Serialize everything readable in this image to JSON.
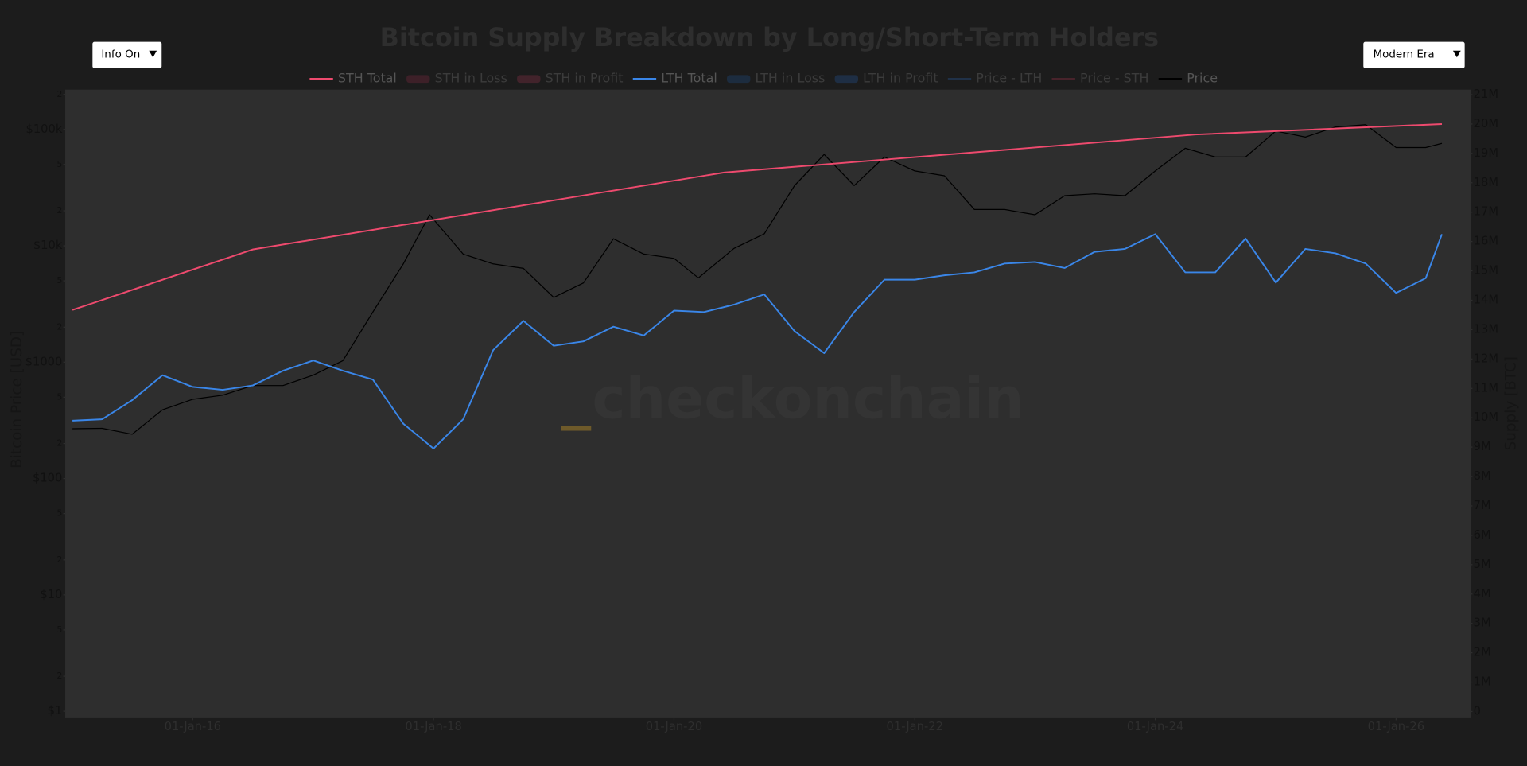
{
  "controls": {
    "info": "Info On",
    "era": "Modern Era"
  },
  "chart_data": {
    "type": "line",
    "title": "Bitcoin Supply Breakdown by Long/Short-Term Holders",
    "watermark": {
      "mark": "_",
      "text": "checkonchain"
    },
    "ylabel": "Bitcoin Price [USD]",
    "y2label": "Supply [BTC]",
    "ylog": true,
    "grid": false,
    "legend": "top",
    "xlim": [
      "2014-12-10",
      "2026-08-15"
    ],
    "xticks": [
      {
        "value": "2016-01-01",
        "label": "01-Jan-16"
      },
      {
        "value": "2018-01-01",
        "label": "01-Jan-18"
      },
      {
        "value": "2020-01-01",
        "label": "01-Jan-20"
      },
      {
        "value": "2022-01-01",
        "label": "01-Jan-22"
      },
      {
        "value": "2024-01-01",
        "label": "01-Jan-24"
      },
      {
        "value": "2026-01-01",
        "label": "01-Jan-26"
      }
    ],
    "ylim": [
      0.87,
      220000
    ],
    "yticks": [
      {
        "value": 1,
        "label": "$1"
      },
      {
        "value": 2,
        "label": "2"
      },
      5,
      {
        "value": 10,
        "label": "$10"
      },
      {
        "value": 20,
        "label": "2"
      },
      {
        "value": 50,
        "label": "5"
      },
      {
        "value": 100,
        "label": "$100"
      },
      {
        "value": 200,
        "label": "2"
      },
      {
        "value": 500,
        "label": "5"
      },
      {
        "value": 1000,
        "label": "$1000"
      },
      {
        "value": 2000,
        "label": "2"
      },
      {
        "value": 5000,
        "label": "5"
      },
      {
        "value": 10000,
        "label": "$10k"
      },
      {
        "value": 20000,
        "label": "2"
      },
      {
        "value": 50000,
        "label": "5"
      },
      {
        "value": 100000,
        "label": "$100k"
      },
      {
        "value": 200000,
        "label": "2"
      }
    ],
    "y2lim": [
      -230000,
      21170000
    ],
    "y2ticks": [
      0,
      {
        "value": 1000000,
        "label": "1M"
      },
      {
        "value": 2000000,
        "label": "2M"
      },
      {
        "value": 3000000,
        "label": "3M"
      },
      {
        "value": 4000000,
        "label": "4M"
      },
      {
        "value": 5000000,
        "label": "5M"
      },
      {
        "value": 6000000,
        "label": "6M"
      },
      {
        "value": 7000000,
        "label": "7M"
      },
      {
        "value": 8000000,
        "label": "8M"
      },
      {
        "value": 9000000,
        "label": "9M"
      },
      {
        "value": 10000000,
        "label": "10M"
      },
      {
        "value": 11000000,
        "label": "11M"
      },
      {
        "value": 12000000,
        "label": "12M"
      },
      {
        "value": 13000000,
        "label": "13M"
      },
      {
        "value": 14000000,
        "label": "14M"
      },
      {
        "value": 15000000,
        "label": "15M"
      },
      {
        "value": 16000000,
        "label": "16M"
      },
      {
        "value": 17000000,
        "label": "17M"
      },
      {
        "value": 18000000,
        "label": "18M"
      },
      {
        "value": 19000000,
        "label": "19M"
      },
      {
        "value": 20000000,
        "label": "20M"
      },
      {
        "value": 21000000,
        "label": "21M"
      }
    ],
    "series": [
      {
        "name": "STH Total",
        "color": "#ee4a6e",
        "axis": "y2",
        "visible": true,
        "x": [
          "2015-01-01",
          "2016-07-01",
          "2020-06-01",
          "2024-05-01",
          "2026-05-20"
        ],
        "values": [
          13670000,
          15730000,
          18350000,
          19640000,
          20000000
        ]
      },
      {
        "name": "STH in Loss",
        "color": "#7a2a40",
        "axis": "y2",
        "visible": false,
        "mode": "area"
      },
      {
        "name": "STH in Profit",
        "color": "#8a3048",
        "axis": "y2",
        "visible": false,
        "mode": "area"
      },
      {
        "name": "LTH Total",
        "color": "#3a86e8",
        "axis": "y2",
        "visible": true,
        "x": [
          "2015-01-01",
          "2015-04-01",
          "2015-07-01",
          "2015-10-01",
          "2016-01-01",
          "2016-04-01",
          "2016-07-01",
          "2016-10-01",
          "2017-01-01",
          "2017-04-01",
          "2017-07-01",
          "2017-10-01",
          "2018-01-01",
          "2018-04-01",
          "2018-07-01",
          "2018-10-01",
          "2019-01-01",
          "2019-04-01",
          "2019-07-01",
          "2019-10-01",
          "2020-01-01",
          "2020-04-01",
          "2020-07-01",
          "2020-10-01",
          "2021-01-01",
          "2021-04-01",
          "2021-07-01",
          "2021-10-01",
          "2022-01-01",
          "2022-04-01",
          "2022-07-01",
          "2022-10-01",
          "2023-01-01",
          "2023-04-01",
          "2023-07-01",
          "2023-10-01",
          "2024-01-01",
          "2024-04-01",
          "2024-07-01",
          "2024-10-01",
          "2025-01-01",
          "2025-04-01",
          "2025-07-01",
          "2025-10-01",
          "2026-01-01",
          "2026-04-01",
          "2026-05-20"
        ],
        "values": [
          9900000,
          9950000,
          10600000,
          11450000,
          11050000,
          10950000,
          11100000,
          11600000,
          11950000,
          11600000,
          11300000,
          9800000,
          8950000,
          9950000,
          12300000,
          13300000,
          12450000,
          12600000,
          13100000,
          12800000,
          13650000,
          13600000,
          13850000,
          14200000,
          12950000,
          12200000,
          13600000,
          14700000,
          14700000,
          14850000,
          14950000,
          15250000,
          15300000,
          15100000,
          15650000,
          15750000,
          16250000,
          14950000,
          14950000,
          16100000,
          14600000,
          15750000,
          15600000,
          15250000,
          14250000,
          14750000,
          16250000
        ]
      },
      {
        "name": "LTH in Loss",
        "color": "#1e4a80",
        "axis": "y2",
        "visible": false,
        "mode": "area"
      },
      {
        "name": "LTH in Profit",
        "color": "#22528e",
        "axis": "y2",
        "visible": false,
        "mode": "area"
      },
      {
        "name": "Price - LTH",
        "color": "#2a5a9a",
        "visible": false
      },
      {
        "name": "Price - STH",
        "color": "#9a3048",
        "visible": false
      },
      {
        "name": "Price",
        "color": "#000000",
        "visible": true,
        "x": [
          "2015-01-01",
          "2015-04-01",
          "2015-07-01",
          "2015-10-01",
          "2016-01-01",
          "2016-04-01",
          "2016-07-01",
          "2016-10-01",
          "2017-01-01",
          "2017-04-01",
          "2017-07-01",
          "2017-10-01",
          "2017-12-20",
          "2018-04-01",
          "2018-07-01",
          "2018-10-01",
          "2019-01-01",
          "2019-04-01",
          "2019-07-01",
          "2019-10-01",
          "2020-01-01",
          "2020-03-15",
          "2020-07-01",
          "2020-10-01",
          "2021-01-01",
          "2021-04-01",
          "2021-07-01",
          "2021-10-01",
          "2022-01-01",
          "2022-04-01",
          "2022-07-01",
          "2022-10-01",
          "2023-01-01",
          "2023-04-01",
          "2023-07-01",
          "2023-10-01",
          "2024-01-01",
          "2024-04-01",
          "2024-07-01",
          "2024-10-01",
          "2025-01-01",
          "2025-04-01",
          "2025-07-01",
          "2025-10-01",
          "2026-01-01",
          "2026-04-01",
          "2026-05-20"
        ],
        "values": [
          268,
          270,
          240,
          390,
          480,
          520,
          630,
          630,
          775,
          1030,
          2700,
          7000,
          18500,
          8500,
          7000,
          6400,
          3600,
          4800,
          11500,
          8500,
          7800,
          5300,
          9500,
          12700,
          33000,
          61000,
          33000,
          58000,
          44000,
          40000,
          20500,
          20500,
          18500,
          27000,
          28000,
          27000,
          44000,
          69000,
          58000,
          58000,
          97000,
          86000,
          105000,
          110000,
          70000,
          70000,
          76000
        ]
      }
    ]
  }
}
